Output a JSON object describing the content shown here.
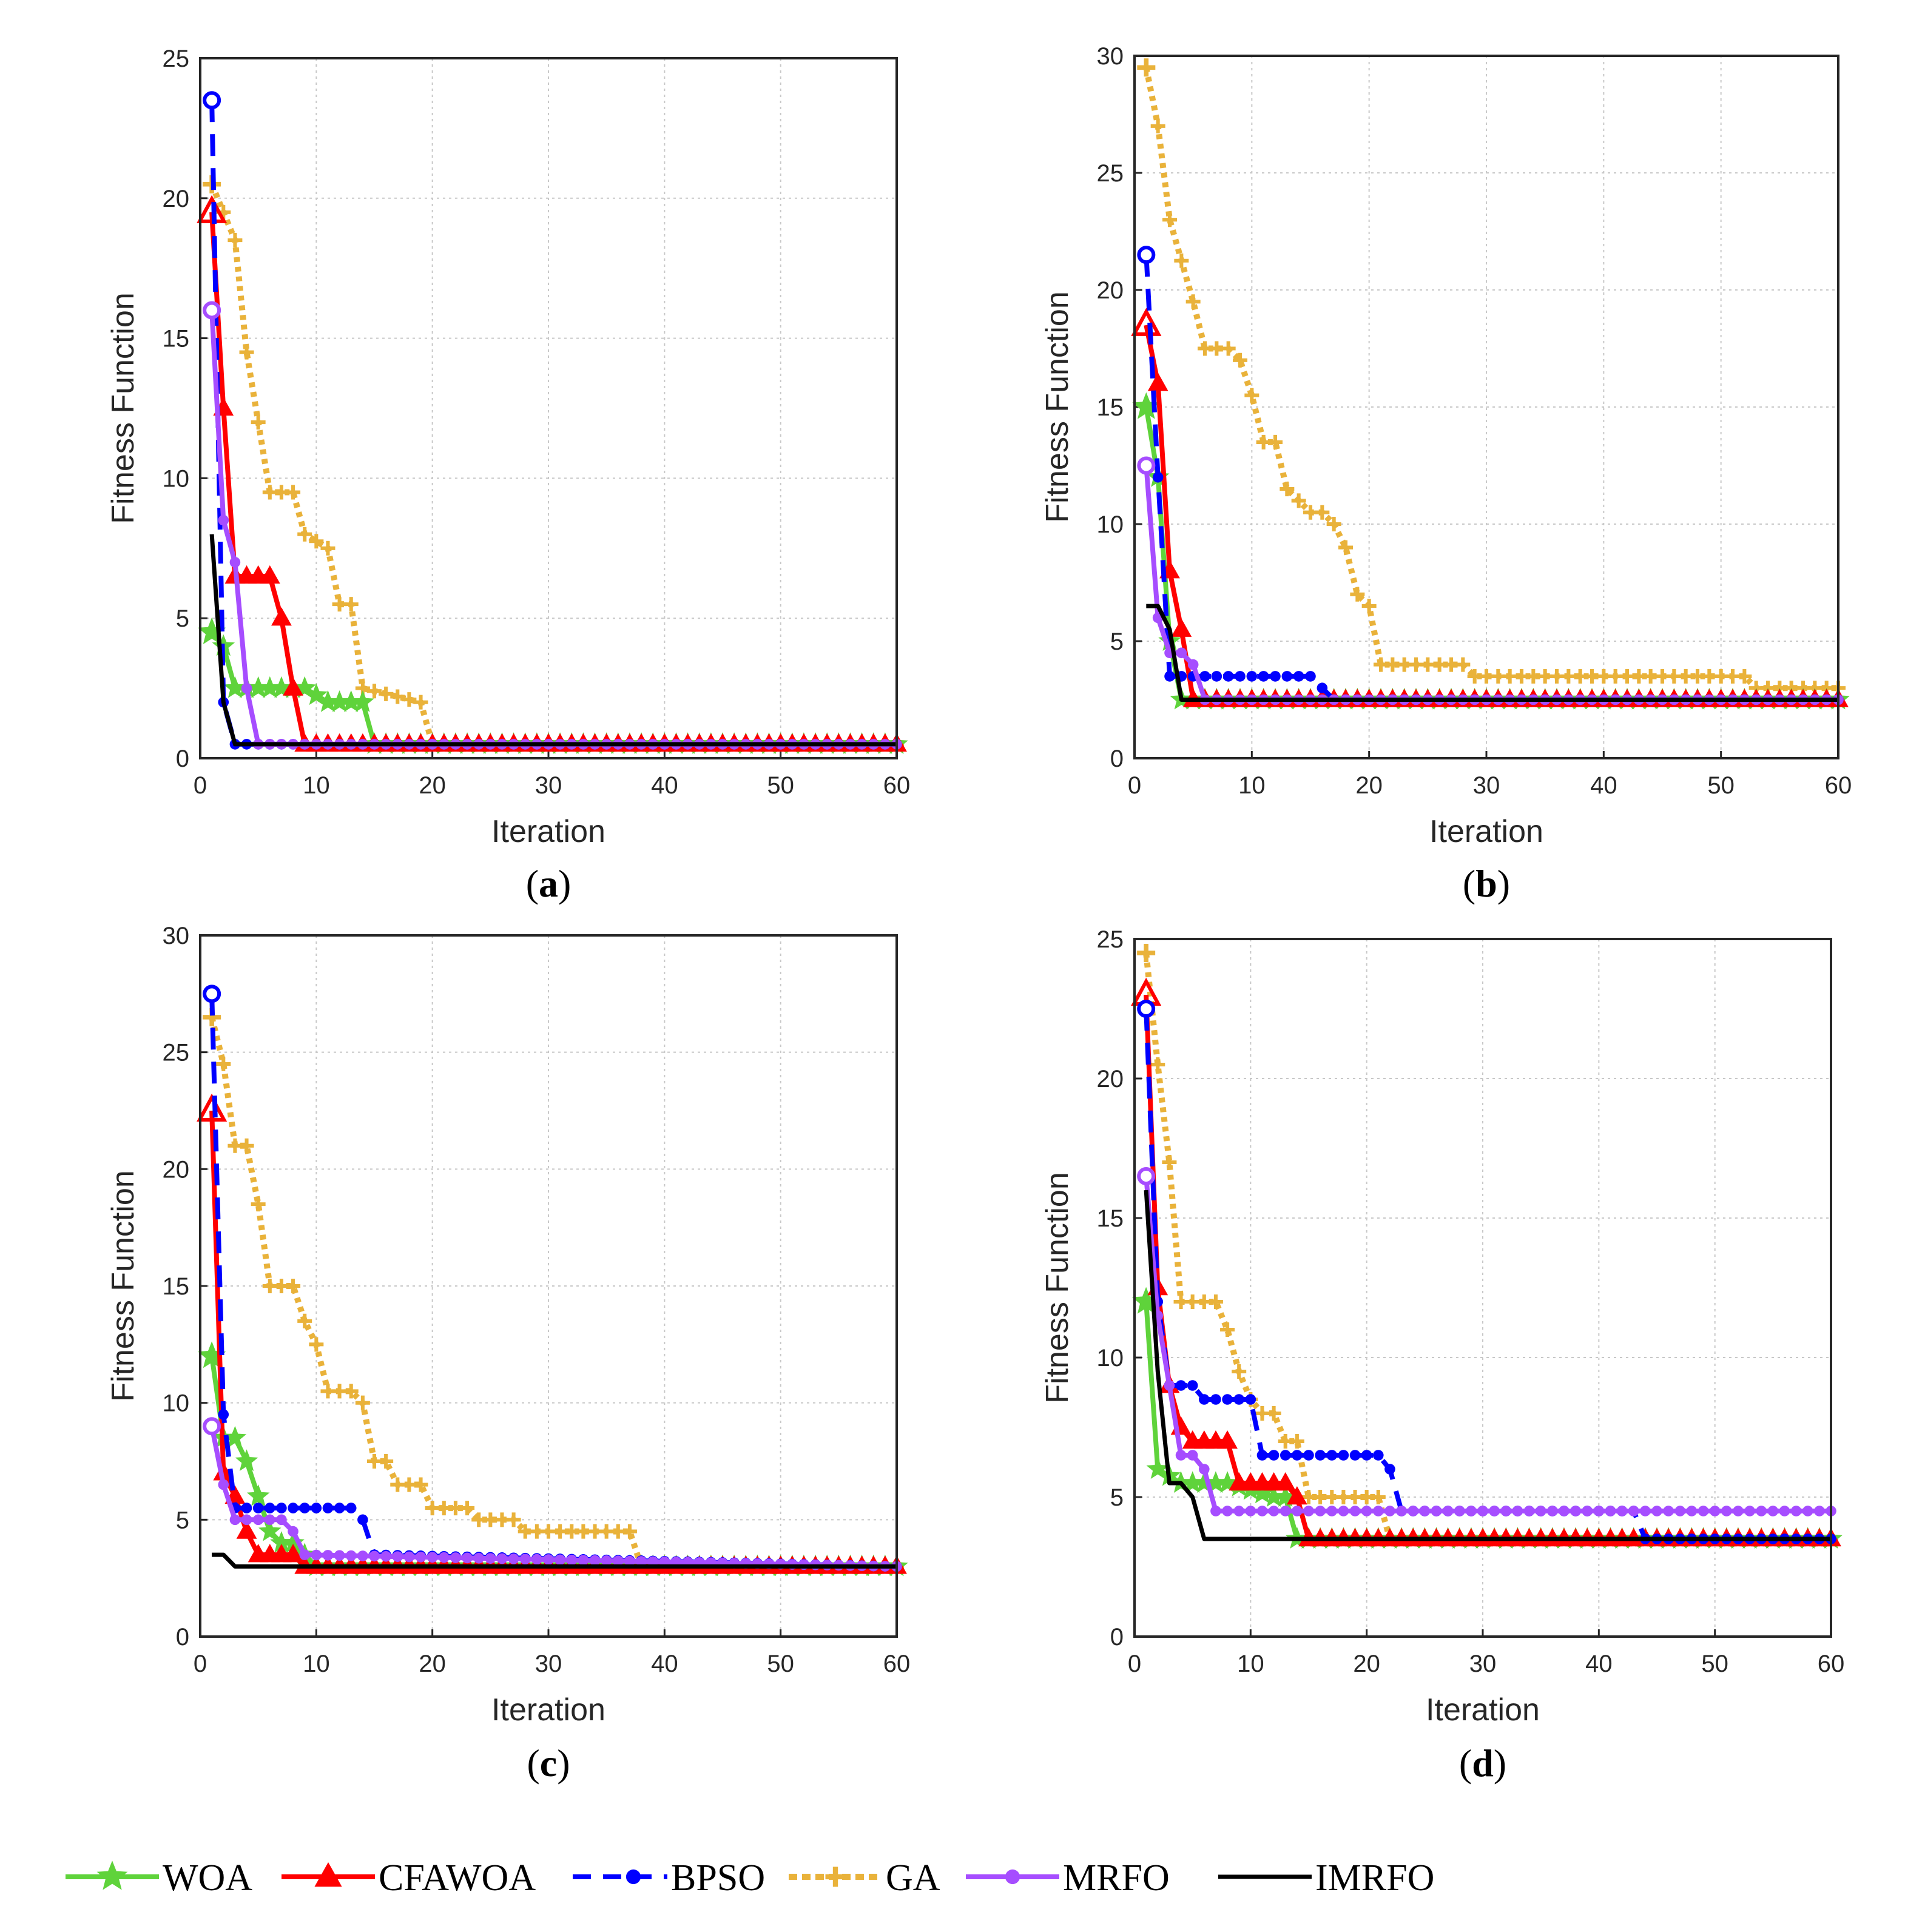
{
  "colors": {
    "WOA": "#5fd33b",
    "CFAWOA": "#ff0000",
    "BPSO": "#0000ff",
    "GA": "#e9b23a",
    "MRFO": "#a64dff",
    "IMRFO": "#000000"
  },
  "legend": [
    {
      "key": "WOA",
      "label": "WOA",
      "marker": "star",
      "dash": "solid"
    },
    {
      "key": "CFAWOA",
      "label": "CFAWOA",
      "marker": "triangle",
      "dash": "solid"
    },
    {
      "key": "BPSO",
      "label": "BPSO",
      "marker": "circle",
      "dash": "dashed"
    },
    {
      "key": "GA",
      "label": "GA",
      "marker": "plus",
      "dash": "dotted"
    },
    {
      "key": "MRFO",
      "label": "MRFO",
      "marker": "circle",
      "dash": "solid"
    },
    {
      "key": "IMRFO",
      "label": "IMRFO",
      "marker": "none",
      "dash": "solid"
    }
  ],
  "chart_data": [
    {
      "type": "line",
      "panel": "a",
      "caption_open": "(",
      "caption_letter": "a",
      "caption_close": ")",
      "xlabel": "Iteration",
      "ylabel": "Fitness Function",
      "xlim": [
        0,
        60
      ],
      "ylim": [
        0,
        25
      ],
      "xticks": [
        0,
        10,
        20,
        30,
        40,
        50,
        60
      ],
      "yticks": [
        0,
        5,
        10,
        15,
        20,
        25
      ],
      "grid": true,
      "series": [
        {
          "name": "WOA",
          "x": [
            1,
            2,
            3,
            9,
            11,
            14,
            15,
            60
          ],
          "y": [
            4.5,
            4,
            2.5,
            2.5,
            2,
            2,
            0.5,
            0.5
          ]
        },
        {
          "name": "CFAWOA",
          "x": [
            1,
            2,
            3,
            6,
            7,
            8,
            9,
            60
          ],
          "y": [
            19.5,
            12.5,
            6.5,
            6.5,
            5,
            2.5,
            0.5,
            0.5
          ]
        },
        {
          "name": "BPSO",
          "x": [
            1,
            2,
            3,
            60
          ],
          "y": [
            23.5,
            2,
            0.5,
            0.5
          ]
        },
        {
          "name": "GA",
          "x": [
            1,
            3,
            4,
            6,
            8,
            9,
            11,
            12,
            13,
            14,
            19,
            20,
            60
          ],
          "y": [
            20.5,
            18.5,
            14.5,
            9.5,
            9.5,
            8,
            7.5,
            5.5,
            5.5,
            2.5,
            2,
            0.5,
            0.5
          ]
        },
        {
          "name": "MRFO",
          "x": [
            1,
            2,
            3,
            4,
            5,
            60
          ],
          "y": [
            16,
            8.5,
            7,
            2.5,
            0.5,
            0.5
          ]
        },
        {
          "name": "IMRFO",
          "x": [
            1,
            2,
            3,
            60
          ],
          "y": [
            8,
            2,
            0.5,
            0.5
          ]
        }
      ]
    },
    {
      "type": "line",
      "panel": "b",
      "caption_open": "(",
      "caption_letter": "b",
      "caption_close": ")",
      "xlabel": "Iteration",
      "ylabel": "Fitness Function",
      "xlim": [
        0,
        60
      ],
      "ylim": [
        0,
        30
      ],
      "xticks": [
        0,
        10,
        20,
        30,
        40,
        50,
        60
      ],
      "yticks": [
        0,
        5,
        10,
        15,
        20,
        25,
        30
      ],
      "grid": true,
      "series": [
        {
          "name": "WOA",
          "x": [
            1,
            2,
            3,
            4,
            60
          ],
          "y": [
            15,
            12,
            5,
            2.5,
            2.5
          ]
        },
        {
          "name": "CFAWOA",
          "x": [
            1,
            2,
            3,
            4,
            5,
            60
          ],
          "y": [
            18.5,
            16,
            8,
            5.5,
            2.5,
            2.5
          ]
        },
        {
          "name": "BPSO",
          "x": [
            1,
            2,
            3,
            15,
            16,
            17,
            60
          ],
          "y": [
            21.5,
            12,
            3.5,
            3.5,
            3,
            2.5,
            2.5
          ]
        },
        {
          "name": "GA",
          "x": [
            1,
            2,
            3,
            5,
            6,
            8,
            9,
            10,
            11,
            12,
            13,
            15,
            16,
            17,
            18,
            19,
            20,
            21,
            28,
            29,
            52,
            53,
            60
          ],
          "y": [
            29.5,
            27,
            23,
            19.5,
            17.5,
            17.5,
            17,
            15.5,
            13.5,
            13.5,
            11.5,
            10.5,
            10.5,
            10,
            9,
            7,
            6.5,
            4,
            4,
            3.5,
            3.5,
            3,
            3
          ]
        },
        {
          "name": "MRFO",
          "x": [
            1,
            2,
            3,
            4,
            5,
            6,
            60
          ],
          "y": [
            12.5,
            6,
            4.5,
            4.5,
            4,
            2.5,
            2.5
          ]
        },
        {
          "name": "IMRFO",
          "x": [
            1,
            2,
            3,
            4,
            60
          ],
          "y": [
            6.5,
            6.5,
            5.5,
            2.5,
            2.5
          ]
        }
      ]
    },
    {
      "type": "line",
      "panel": "c",
      "caption_open": "(",
      "caption_letter": "c",
      "caption_close": ")",
      "xlabel": "Iteration",
      "ylabel": "Fitness Function",
      "xlim": [
        0,
        60
      ],
      "ylim": [
        0,
        30
      ],
      "xticks": [
        0,
        10,
        20,
        30,
        40,
        50,
        60
      ],
      "yticks": [
        0,
        5,
        10,
        15,
        20,
        25,
        30
      ],
      "grid": true,
      "series": [
        {
          "name": "WOA",
          "x": [
            1,
            2,
            3,
            4,
            5,
            6,
            7,
            8,
            9,
            10,
            60
          ],
          "y": [
            12,
            8.5,
            8.5,
            7.5,
            6,
            4.5,
            4,
            4,
            3.5,
            3,
            3
          ]
        },
        {
          "name": "CFAWOA",
          "x": [
            1,
            2,
            3,
            4,
            5,
            8,
            9,
            60
          ],
          "y": [
            22.5,
            7,
            6,
            4.5,
            3.5,
            3.5,
            3,
            3
          ]
        },
        {
          "name": "BPSO",
          "x": [
            1,
            2,
            3,
            13,
            14,
            15,
            60
          ],
          "y": [
            27.5,
            9.5,
            5.5,
            5.5,
            5,
            3.5,
            3
          ]
        },
        {
          "name": "GA",
          "x": [
            1,
            2,
            3,
            4,
            5,
            6,
            8,
            9,
            10,
            11,
            13,
            14,
            15,
            16,
            17,
            19,
            20,
            23,
            24,
            27,
            28,
            37,
            38,
            60
          ],
          "y": [
            26.5,
            24.5,
            21,
            21,
            18.5,
            15,
            15,
            13.5,
            12.5,
            10.5,
            10.5,
            10,
            7.5,
            7.5,
            6.5,
            6.5,
            5.5,
            5.5,
            5,
            5,
            4.5,
            4.5,
            3,
            3
          ]
        },
        {
          "name": "MRFO",
          "x": [
            1,
            2,
            3,
            7,
            8,
            9,
            60
          ],
          "y": [
            9,
            6.5,
            5,
            5,
            4.5,
            3.5,
            3
          ]
        },
        {
          "name": "IMRFO",
          "x": [
            1,
            2,
            3,
            60
          ],
          "y": [
            3.5,
            3.5,
            3,
            3
          ]
        }
      ]
    },
    {
      "type": "line",
      "panel": "d",
      "caption_open": "(",
      "caption_letter": "d",
      "caption_close": ")",
      "xlabel": "Iteration",
      "ylabel": "Fitness Function",
      "xlim": [
        0,
        60
      ],
      "ylim": [
        0,
        25
      ],
      "xticks": [
        0,
        10,
        20,
        30,
        40,
        50,
        60
      ],
      "yticks": [
        0,
        5,
        10,
        15,
        20,
        25
      ],
      "grid": true,
      "series": [
        {
          "name": "WOA",
          "x": [
            1,
            2,
            4,
            6,
            8,
            12,
            13,
            14,
            60
          ],
          "y": [
            12,
            6,
            5.5,
            5.5,
            5.5,
            5,
            5,
            3.5,
            3.5
          ]
        },
        {
          "name": "CFAWOA",
          "x": [
            1,
            2,
            3,
            4,
            5,
            8,
            9,
            13,
            14,
            15,
            60
          ],
          "y": [
            23,
            12.5,
            9,
            7.5,
            7,
            7,
            5.5,
            5.5,
            5,
            3.5,
            3.5
          ]
        },
        {
          "name": "BPSO",
          "x": [
            1,
            2,
            3,
            5,
            6,
            9,
            10,
            11,
            21,
            22,
            23,
            43,
            44,
            60
          ],
          "y": [
            22.5,
            12,
            9,
            9,
            8.5,
            8.5,
            8.5,
            6.5,
            6.5,
            6,
            4.5,
            4.5,
            3.5,
            3.5
          ]
        },
        {
          "name": "GA",
          "x": [
            1,
            2,
            3,
            4,
            7,
            8,
            9,
            10,
            11,
            12,
            13,
            14,
            15,
            16,
            21,
            22,
            60
          ],
          "y": [
            24.5,
            20.5,
            17,
            12,
            12,
            11,
            9.5,
            8.5,
            8,
            8,
            7,
            7,
            5,
            5,
            5,
            3.5,
            3.5
          ]
        },
        {
          "name": "MRFO",
          "x": [
            1,
            2,
            3,
            4,
            5,
            6,
            7,
            60
          ],
          "y": [
            16.5,
            11.5,
            9,
            6.5,
            6.5,
            6,
            4.5,
            4.5
          ]
        },
        {
          "name": "IMRFO",
          "x": [
            1,
            2,
            3,
            4,
            5,
            6,
            60
          ],
          "y": [
            16,
            9.5,
            5.5,
            5.5,
            5,
            3.5,
            3.5
          ]
        }
      ]
    }
  ]
}
